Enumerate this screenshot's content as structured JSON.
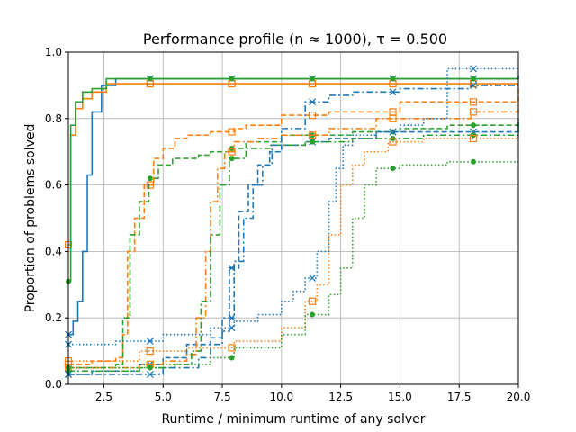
{
  "chart_data": {
    "type": "line",
    "title": "Performance profile (n ≈ 1000), τ = 0.500",
    "xlabel": "Runtime / minimum runtime of any solver",
    "ylabel": "Proportion of problems solved",
    "xlim": [
      1,
      20
    ],
    "ylim": [
      0,
      1
    ],
    "xticks": [
      2.5,
      5.0,
      7.5,
      10.0,
      12.5,
      15.0,
      17.5,
      20.0
    ],
    "xtick_labels": [
      "2.5",
      "5.0",
      "7.5",
      "10.0",
      "12.5",
      "15.0",
      "17.5",
      "20.0"
    ],
    "yticks": [
      0.0,
      0.2,
      0.4,
      0.6,
      0.8,
      1.0
    ],
    "ytick_labels": [
      "0.0",
      "0.2",
      "0.4",
      "0.6",
      "0.8",
      "1.0"
    ],
    "grid": true,
    "colors": {
      "blue": "#1f77b4",
      "orange": "#ff7f0e",
      "green": "#2ca02c"
    },
    "series": [
      {
        "color": "#1f77b4",
        "linestyle": "solid",
        "marker": "x",
        "x": [
          1.0,
          1.2,
          1.4,
          1.6,
          1.8,
          2.0,
          2.4,
          3.0,
          20.0
        ],
        "y": [
          0.15,
          0.19,
          0.25,
          0.4,
          0.63,
          0.82,
          0.9,
          0.92,
          0.93
        ]
      },
      {
        "color": "#ff7f0e",
        "linestyle": "solid",
        "marker": "s",
        "x": [
          1.0,
          1.1,
          1.3,
          1.6,
          2.0,
          2.6,
          20.0
        ],
        "y": [
          0.42,
          0.75,
          0.83,
          0.86,
          0.88,
          0.905,
          0.905
        ]
      },
      {
        "color": "#2ca02c",
        "linestyle": "solid",
        "marker": "o",
        "x": [
          1.0,
          1.1,
          1.3,
          1.6,
          2.0,
          2.6,
          20.0
        ],
        "y": [
          0.31,
          0.78,
          0.85,
          0.88,
          0.89,
          0.92,
          0.92
        ]
      },
      {
        "color": "#ff7f0e",
        "linestyle": "dashed",
        "marker": "s",
        "x": [
          1.0,
          2.0,
          3.0,
          3.3,
          3.5,
          3.8,
          4.2,
          4.6,
          5.0,
          5.5,
          6.0,
          7.0,
          8.0,
          8.5,
          10.0,
          12.0,
          15.0,
          20.0
        ],
        "y": [
          0.06,
          0.07,
          0.08,
          0.15,
          0.4,
          0.5,
          0.6,
          0.68,
          0.71,
          0.74,
          0.75,
          0.76,
          0.77,
          0.78,
          0.81,
          0.82,
          0.85,
          0.89
        ]
      },
      {
        "color": "#2ca02c",
        "linestyle": "dashed",
        "marker": "o",
        "x": [
          1.0,
          3.0,
          3.3,
          3.6,
          4.0,
          4.4,
          4.8,
          5.4,
          6.5,
          7.0,
          7.8,
          8.5,
          10.0,
          13.0,
          15.0,
          17.0,
          20.0
        ],
        "y": [
          0.05,
          0.06,
          0.2,
          0.45,
          0.55,
          0.62,
          0.66,
          0.68,
          0.69,
          0.7,
          0.71,
          0.73,
          0.75,
          0.76,
          0.77,
          0.78,
          0.8
        ]
      },
      {
        "color": "#1f77b4",
        "linestyle": "dashed",
        "marker": "x",
        "x": [
          1.0,
          2.0,
          4.0,
          5.0,
          6.0,
          7.0,
          7.5,
          7.8,
          8.2,
          8.6,
          9.0,
          9.5,
          10.0,
          11.0,
          12.0,
          14.0,
          20.0
        ],
        "y": [
          0.03,
          0.04,
          0.06,
          0.08,
          0.12,
          0.14,
          0.16,
          0.35,
          0.52,
          0.6,
          0.66,
          0.7,
          0.72,
          0.73,
          0.74,
          0.76,
          0.79
        ]
      },
      {
        "color": "#ff7f0e",
        "linestyle": "dashdot",
        "marker": "s",
        "x": [
          1.0,
          4.0,
          5.0,
          6.0,
          6.4,
          6.8,
          7.0,
          7.3,
          7.6,
          8.0,
          9.0,
          10.0,
          12.0,
          14.0,
          18.0,
          20.0
        ],
        "y": [
          0.05,
          0.06,
          0.07,
          0.09,
          0.2,
          0.4,
          0.55,
          0.65,
          0.7,
          0.73,
          0.74,
          0.75,
          0.77,
          0.8,
          0.82,
          0.84
        ]
      },
      {
        "color": "#2ca02c",
        "linestyle": "dashdot",
        "marker": "o",
        "x": [
          1.0,
          4.0,
          5.5,
          6.2,
          6.6,
          7.0,
          7.4,
          7.8,
          8.5,
          9.5,
          11.0,
          13.0,
          16.0,
          20.0
        ],
        "y": [
          0.04,
          0.05,
          0.06,
          0.1,
          0.25,
          0.45,
          0.6,
          0.68,
          0.71,
          0.72,
          0.73,
          0.74,
          0.75,
          0.79
        ]
      },
      {
        "color": "#1f77b4",
        "linestyle": "dashdot",
        "marker": "x",
        "x": [
          1.0,
          5.0,
          6.5,
          7.0,
          7.5,
          8.0,
          8.4,
          8.8,
          9.2,
          9.6,
          10.0,
          11.0,
          12.0,
          13.0,
          15.0,
          18.0,
          20.0
        ],
        "y": [
          0.03,
          0.05,
          0.08,
          0.12,
          0.2,
          0.37,
          0.5,
          0.6,
          0.66,
          0.72,
          0.77,
          0.85,
          0.87,
          0.88,
          0.89,
          0.9,
          0.9
        ]
      },
      {
        "color": "#1f77b4",
        "linestyle": "dotted",
        "marker": "x",
        "x": [
          1.0,
          3.0,
          5.0,
          7.0,
          8.0,
          9.0,
          10.0,
          10.5,
          11.0,
          11.5,
          12.0,
          12.3,
          12.6,
          13.0,
          14.0,
          15.0,
          16.0,
          17.0,
          20.0
        ],
        "y": [
          0.12,
          0.13,
          0.15,
          0.17,
          0.19,
          0.21,
          0.25,
          0.28,
          0.32,
          0.4,
          0.55,
          0.65,
          0.72,
          0.75,
          0.76,
          0.78,
          0.8,
          0.95,
          0.95
        ]
      },
      {
        "color": "#ff7f0e",
        "linestyle": "dotted",
        "marker": "s",
        "x": [
          1.0,
          4.0,
          6.0,
          8.0,
          10.0,
          11.0,
          11.5,
          12.0,
          12.5,
          13.0,
          13.5,
          14.5,
          16.0,
          20.0
        ],
        "y": [
          0.07,
          0.1,
          0.11,
          0.13,
          0.17,
          0.25,
          0.3,
          0.45,
          0.6,
          0.66,
          0.7,
          0.73,
          0.74,
          0.75
        ]
      },
      {
        "color": "#2ca02c",
        "linestyle": "dotted",
        "marker": "o",
        "x": [
          1.0,
          5.0,
          7.0,
          8.0,
          10.0,
          11.0,
          12.0,
          12.5,
          13.0,
          13.5,
          14.0,
          15.0,
          17.0,
          20.0
        ],
        "y": [
          0.05,
          0.06,
          0.08,
          0.11,
          0.15,
          0.21,
          0.27,
          0.35,
          0.5,
          0.6,
          0.65,
          0.66,
          0.67,
          0.67
        ]
      }
    ]
  }
}
